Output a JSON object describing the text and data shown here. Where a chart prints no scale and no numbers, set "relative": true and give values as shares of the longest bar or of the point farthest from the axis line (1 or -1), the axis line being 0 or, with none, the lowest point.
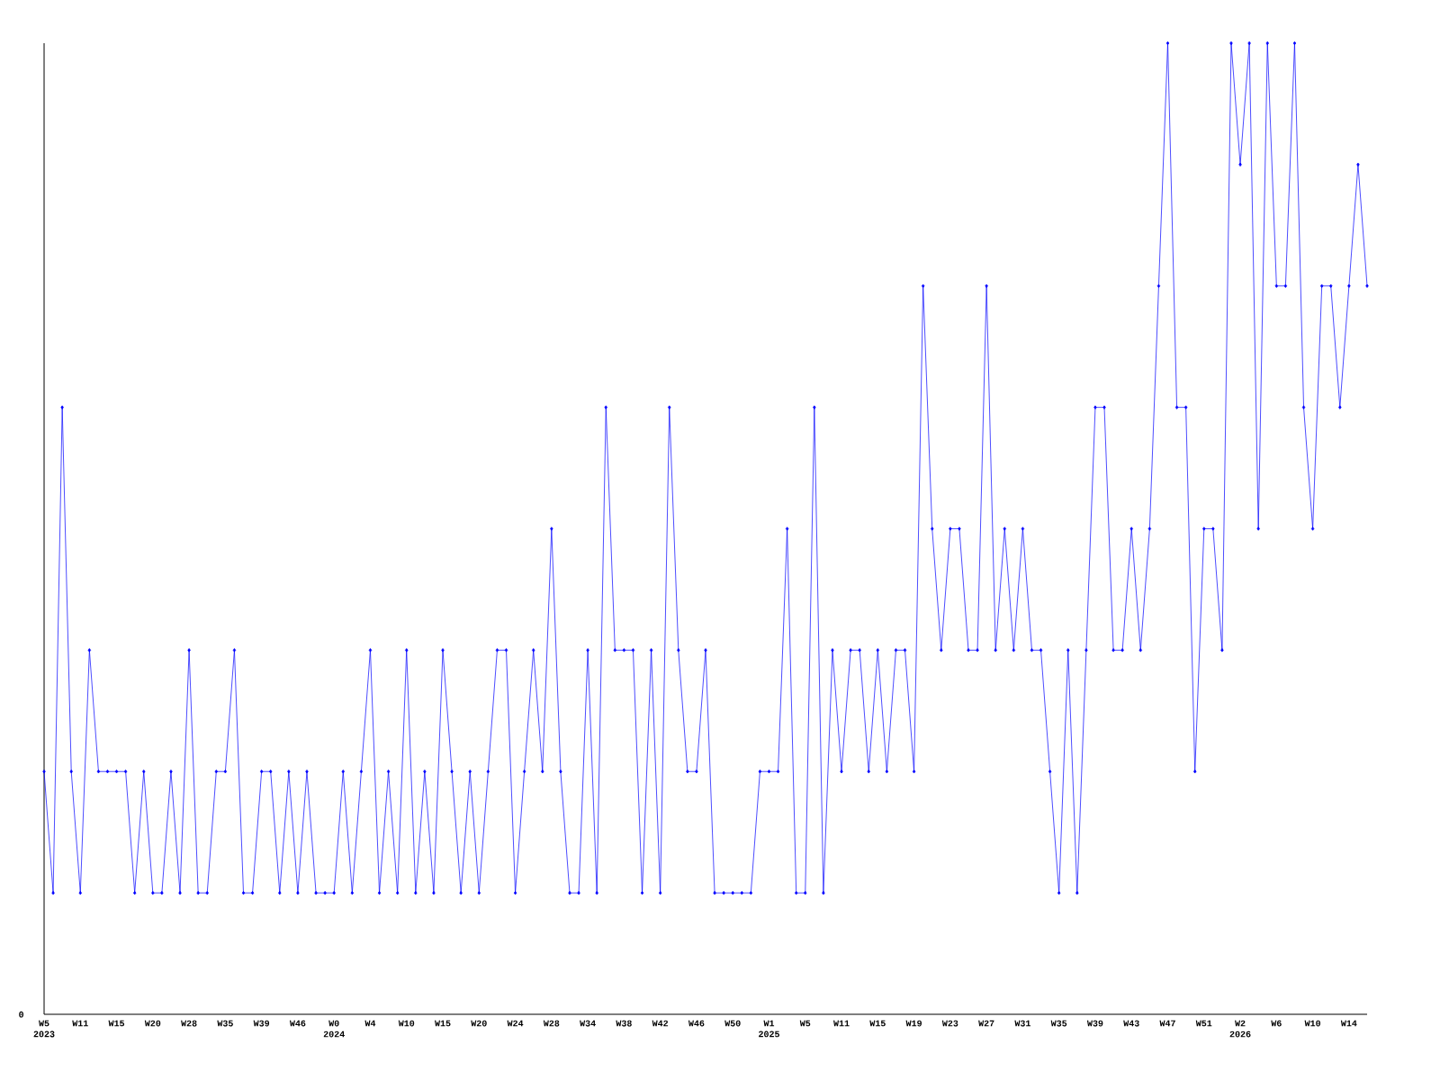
{
  "chart_data": {
    "type": "line",
    "relative": true,
    "color": "#0000ff",
    "marker": "diamond",
    "categories": [
      "W5 2023",
      null,
      null,
      null,
      "W11",
      null,
      null,
      null,
      "W15",
      null,
      null,
      null,
      "W20",
      null,
      null,
      null,
      "W28",
      null,
      null,
      null,
      "W35",
      null,
      null,
      null,
      "W39",
      null,
      null,
      null,
      "W46",
      null,
      null,
      null,
      "W0 2024",
      null,
      null,
      null,
      "W4",
      null,
      null,
      null,
      "W10",
      null,
      null,
      null,
      "W15",
      null,
      null,
      null,
      "W20",
      null,
      null,
      null,
      "W24",
      null,
      null,
      null,
      "W28",
      null,
      null,
      null,
      "W34",
      null,
      null,
      null,
      "W38",
      null,
      null,
      null,
      "W42",
      null,
      null,
      null,
      "W46",
      null,
      null,
      null,
      "W50",
      null,
      null,
      null,
      "W1 2025",
      null,
      null,
      null,
      "W5",
      null,
      null,
      null,
      "W11",
      null,
      null,
      null,
      "W15",
      null,
      null,
      null,
      "W19",
      null,
      null,
      null,
      "W23",
      null,
      null,
      null,
      "W27",
      null,
      null,
      null,
      "W31",
      null,
      null,
      null,
      "W35",
      null,
      null,
      null,
      "W39",
      null,
      null,
      null,
      "W43",
      null,
      null,
      null,
      "W47",
      null,
      null,
      null,
      "W51",
      null,
      null,
      null,
      "W2 2026",
      null,
      null,
      null,
      "W6",
      null,
      null,
      null,
      "W10",
      null,
      null,
      null,
      "W14",
      null,
      null
    ],
    "values": [
      0.25,
      0.125,
      0.625,
      0.25,
      0.125,
      0.375,
      0.25,
      0.25,
      0.25,
      0.25,
      0.125,
      0.25,
      0.125,
      0.125,
      0.25,
      0.125,
      0.375,
      0.125,
      0.125,
      0.25,
      0.25,
      0.375,
      0.125,
      0.125,
      0.25,
      0.25,
      0.125,
      0.25,
      0.125,
      0.25,
      0.125,
      0.125,
      0.125,
      0.25,
      0.125,
      0.25,
      0.375,
      0.125,
      0.25,
      0.125,
      0.375,
      0.125,
      0.25,
      0.125,
      0.375,
      0.25,
      0.125,
      0.25,
      0.125,
      0.25,
      0.375,
      0.375,
      0.125,
      0.25,
      0.375,
      0.25,
      0.5,
      0.25,
      0.125,
      0.125,
      0.375,
      0.125,
      0.625,
      0.375,
      0.375,
      0.375,
      0.125,
      0.375,
      0.125,
      0.625,
      0.375,
      0.25,
      0.25,
      0.375,
      0.125,
      0.125,
      0.125,
      0.125,
      0.125,
      0.25,
      0.25,
      0.25,
      0.5,
      0.125,
      0.125,
      0.625,
      0.125,
      0.375,
      0.25,
      0.375,
      0.375,
      0.25,
      0.375,
      0.25,
      0.375,
      0.375,
      0.25,
      0.75,
      0.5,
      0.375,
      0.5,
      0.5,
      0.375,
      0.375,
      0.75,
      0.375,
      0.5,
      0.375,
      0.5,
      0.375,
      0.375,
      0.25,
      0.125,
      0.375,
      0.125,
      0.375,
      0.625,
      0.625,
      0.375,
      0.375,
      0.5,
      0.375,
      0.5,
      0.75,
      1,
      0.625,
      0.625,
      0.25,
      0.5,
      0.5,
      0.375,
      1,
      0.875,
      1,
      0.5,
      1,
      0.75,
      0.75,
      1,
      0.625,
      0.5,
      0.75,
      0.75,
      0.625,
      0.75,
      0.875,
      0.75
    ],
    "annotations": [
      "0"
    ]
  }
}
